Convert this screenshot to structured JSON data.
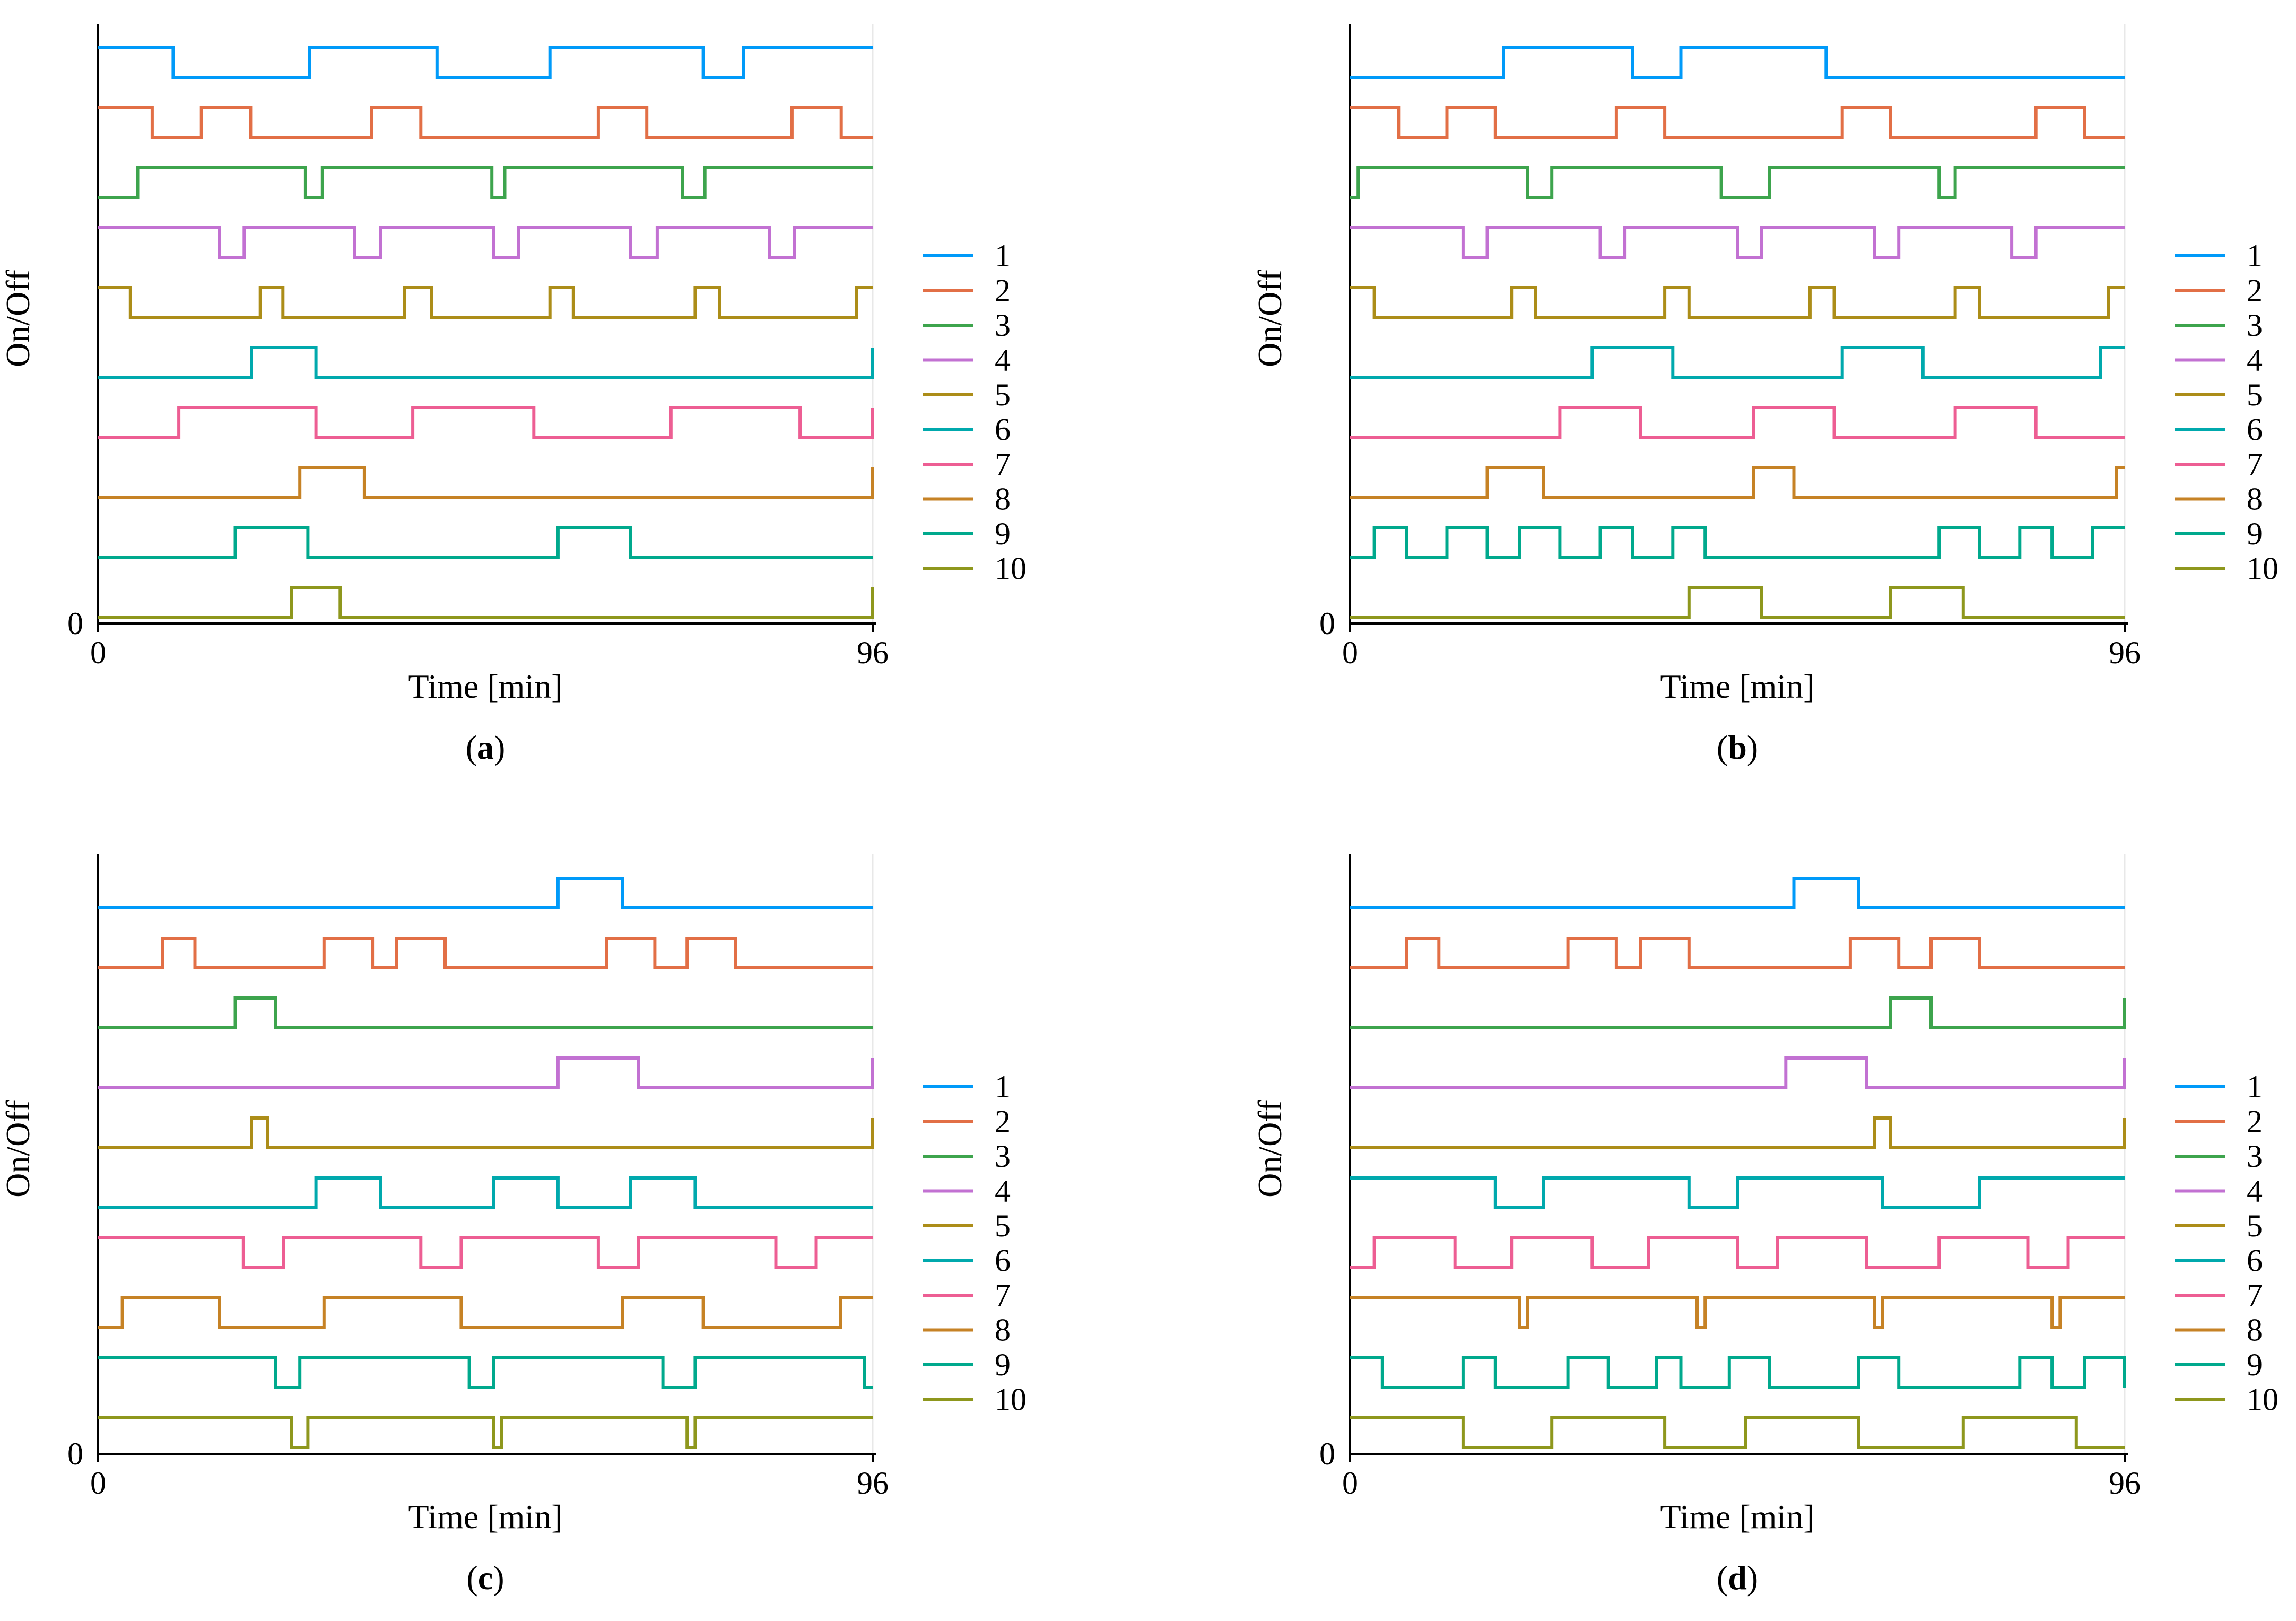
{
  "figure": {
    "panels": [
      {
        "caption_open": "(",
        "caption_letter": "a",
        "caption_close": ")"
      },
      {
        "caption_open": "(",
        "caption_letter": "b",
        "caption_close": ")"
      },
      {
        "caption_open": "(",
        "caption_letter": "c",
        "caption_close": ")"
      },
      {
        "caption_open": "(",
        "caption_letter": "d",
        "caption_close": ")"
      }
    ]
  },
  "chart_data": [
    {
      "type": "line",
      "step": true,
      "title": "",
      "xlabel": "Time [min]",
      "ylabel": "On/Off",
      "xlim": [
        0,
        96
      ],
      "xticks": [
        0,
        96
      ],
      "yticks": [
        0
      ],
      "grid": true,
      "legend_position": "right",
      "series": [
        {
          "name": "1",
          "color": "#009AF9",
          "initial": 1,
          "switches": [
            9.3,
            26.2,
            42.0,
            56.0,
            75.0,
            80.0
          ]
        },
        {
          "name": "2",
          "color": "#E26F46",
          "initial": 1,
          "switches": [
            6.7,
            12.8,
            18.9,
            33.9,
            40.0,
            62.0,
            68.0,
            86.0,
            92.1
          ]
        },
        {
          "name": "3",
          "color": "#3DA44D",
          "initial": 0,
          "switches": [
            4.9,
            25.7,
            27.8,
            48.8,
            50.4,
            72.4,
            75.2
          ]
        },
        {
          "name": "4",
          "color": "#C271D2",
          "initial": 1,
          "switches": [
            15.0,
            18.1,
            31.8,
            35.0,
            49.0,
            52.1,
            66.0,
            69.3,
            83.2,
            86.3
          ]
        },
        {
          "name": "5",
          "color": "#AC8D18",
          "initial": 1,
          "switches": [
            4.0,
            20.1,
            22.9,
            38.0,
            41.3,
            56.0,
            58.9,
            74.0,
            77.0,
            94.0
          ]
        },
        {
          "name": "6",
          "color": "#00A9AD",
          "initial": 0,
          "switches": [
            19.0,
            27.0,
            96.0
          ]
        },
        {
          "name": "7",
          "color": "#ED5E93",
          "initial": 0,
          "switches": [
            10.0,
            27.0,
            39.0,
            54.0,
            71.0,
            87.0,
            96.0
          ]
        },
        {
          "name": "8",
          "color": "#C68225",
          "initial": 0,
          "switches": [
            25.0,
            33.0,
            96.0
          ]
        },
        {
          "name": "9",
          "color": "#00A98D",
          "initial": 0,
          "switches": [
            17.0,
            26.0,
            57.0,
            66.0
          ]
        },
        {
          "name": "10",
          "color": "#8E971D",
          "initial": 0,
          "switches": [
            24.0,
            30.0,
            96.0
          ]
        }
      ]
    },
    {
      "type": "line",
      "step": true,
      "title": "",
      "xlabel": "Time [min]",
      "ylabel": "On/Off",
      "xlim": [
        0,
        96
      ],
      "xticks": [
        0,
        96
      ],
      "yticks": [
        0
      ],
      "grid": true,
      "legend_position": "right",
      "series": [
        {
          "name": "1",
          "color": "#009AF9",
          "initial": 0,
          "switches": [
            19.0,
            35.0,
            41.0,
            59.0
          ]
        },
        {
          "name": "2",
          "color": "#E26F46",
          "initial": 1,
          "switches": [
            6.0,
            12.0,
            18.0,
            33.0,
            39.0,
            61.0,
            67.0,
            85.0,
            91.0
          ]
        },
        {
          "name": "3",
          "color": "#3DA44D",
          "initial": 0,
          "switches": [
            1.0,
            22.0,
            25.0,
            46.0,
            52.0,
            73.0,
            75.0
          ]
        },
        {
          "name": "4",
          "color": "#C271D2",
          "initial": 1,
          "switches": [
            14.0,
            17.0,
            31.0,
            34.0,
            48.0,
            51.0,
            65.0,
            68.0,
            82.0,
            85.0
          ]
        },
        {
          "name": "5",
          "color": "#AC8D18",
          "initial": 1,
          "switches": [
            3.0,
            20.0,
            23.0,
            39.0,
            42.0,
            57.0,
            60.0,
            75.0,
            78.0,
            94.0
          ]
        },
        {
          "name": "6",
          "color": "#00A9AD",
          "initial": 0,
          "switches": [
            30.0,
            40.0,
            61.0,
            71.0,
            93.0
          ]
        },
        {
          "name": "7",
          "color": "#ED5E93",
          "initial": 0,
          "switches": [
            26.0,
            36.0,
            50.0,
            60.0,
            75.0,
            85.0
          ]
        },
        {
          "name": "8",
          "color": "#C68225",
          "initial": 0,
          "switches": [
            17.0,
            24.0,
            50.0,
            55.0,
            95.0
          ]
        },
        {
          "name": "9",
          "color": "#00A98D",
          "initial": 0,
          "switches": [
            3.0,
            7.0,
            12.0,
            17.0,
            21.0,
            26.0,
            31.0,
            35.0,
            40.0,
            44.0,
            73.0,
            78.0,
            83.0,
            87.0,
            92.0
          ]
        },
        {
          "name": "10",
          "color": "#8E971D",
          "initial": 0,
          "switches": [
            42.0,
            51.0,
            67.0,
            76.0
          ]
        }
      ]
    },
    {
      "type": "line",
      "step": true,
      "title": "",
      "xlabel": "Time [min]",
      "ylabel": "On/Off",
      "xlim": [
        0,
        96
      ],
      "xticks": [
        0,
        96
      ],
      "yticks": [
        0
      ],
      "grid": true,
      "legend_position": "right",
      "series": [
        {
          "name": "1",
          "color": "#009AF9",
          "initial": 0,
          "switches": [
            57.0,
            65.0
          ]
        },
        {
          "name": "2",
          "color": "#E26F46",
          "initial": 0,
          "switches": [
            8.0,
            12.0,
            28.0,
            34.0,
            37.0,
            43.0,
            63.0,
            69.0,
            73.0,
            79.0
          ]
        },
        {
          "name": "3",
          "color": "#3DA44D",
          "initial": 0,
          "switches": [
            17.0,
            22.0
          ]
        },
        {
          "name": "4",
          "color": "#C271D2",
          "initial": 0,
          "switches": [
            57.0,
            67.0,
            96.0
          ]
        },
        {
          "name": "5",
          "color": "#AC8D18",
          "initial": 0,
          "switches": [
            19.0,
            21.0,
            96.0
          ]
        },
        {
          "name": "6",
          "color": "#00A9AD",
          "initial": 0,
          "switches": [
            27.0,
            35.0,
            49.0,
            57.0,
            66.0,
            74.0
          ]
        },
        {
          "name": "7",
          "color": "#ED5E93",
          "initial": 1,
          "switches": [
            18.0,
            23.0,
            40.0,
            45.0,
            62.0,
            67.0,
            84.0,
            89.0
          ]
        },
        {
          "name": "8",
          "color": "#C68225",
          "initial": 0,
          "switches": [
            3.0,
            15.0,
            28.0,
            45.0,
            65.0,
            75.0,
            92.0
          ]
        },
        {
          "name": "9",
          "color": "#00A98D",
          "initial": 1,
          "switches": [
            22.0,
            25.0,
            46.0,
            49.0,
            70.0,
            74.0,
            95.0
          ]
        },
        {
          "name": "10",
          "color": "#8E971D",
          "initial": 1,
          "switches": [
            24.0,
            26.0,
            49.0,
            50.0,
            73.0,
            74.0
          ]
        }
      ]
    },
    {
      "type": "line",
      "step": true,
      "title": "",
      "xlabel": "Time [min]",
      "ylabel": "On/Off",
      "xlim": [
        0,
        96
      ],
      "xticks": [
        0,
        96
      ],
      "yticks": [
        0
      ],
      "grid": true,
      "legend_position": "right",
      "series": [
        {
          "name": "1",
          "color": "#009AF9",
          "initial": 0,
          "switches": [
            55.0,
            63.0
          ]
        },
        {
          "name": "2",
          "color": "#E26F46",
          "initial": 0,
          "switches": [
            7.0,
            11.0,
            27.0,
            33.0,
            36.0,
            42.0,
            62.0,
            68.0,
            72.0,
            78.0
          ]
        },
        {
          "name": "3",
          "color": "#3DA44D",
          "initial": 0,
          "switches": [
            67.0,
            72.0,
            96.0
          ]
        },
        {
          "name": "4",
          "color": "#C271D2",
          "initial": 0,
          "switches": [
            54.0,
            64.0,
            96.0
          ]
        },
        {
          "name": "5",
          "color": "#AC8D18",
          "initial": 0,
          "switches": [
            65.0,
            67.0,
            96.0
          ]
        },
        {
          "name": "6",
          "color": "#00A9AD",
          "initial": 1,
          "switches": [
            18.0,
            24.0,
            42.0,
            48.0,
            66.0,
            78.0
          ]
        },
        {
          "name": "7",
          "color": "#ED5E93",
          "initial": 0,
          "switches": [
            3.0,
            13.0,
            20.0,
            30.0,
            37.0,
            48.0,
            53.0,
            64.0,
            73.0,
            84.0,
            89.0
          ]
        },
        {
          "name": "8",
          "color": "#C68225",
          "initial": 1,
          "switches": [
            21.0,
            22.0,
            43.0,
            44.0,
            65.0,
            66.0,
            87.0,
            88.0
          ]
        },
        {
          "name": "9",
          "color": "#00A98D",
          "initial": 1,
          "switches": [
            4.0,
            14.0,
            18.0,
            27.0,
            32.0,
            38.0,
            41.0,
            47.0,
            52.0,
            63.0,
            68.0,
            83.0,
            87.0,
            91.0,
            96.0
          ]
        },
        {
          "name": "10",
          "color": "#8E971D",
          "initial": 1,
          "switches": [
            14.0,
            25.0,
            39.0,
            49.0,
            63.0,
            76.0,
            90.0
          ]
        }
      ]
    }
  ]
}
